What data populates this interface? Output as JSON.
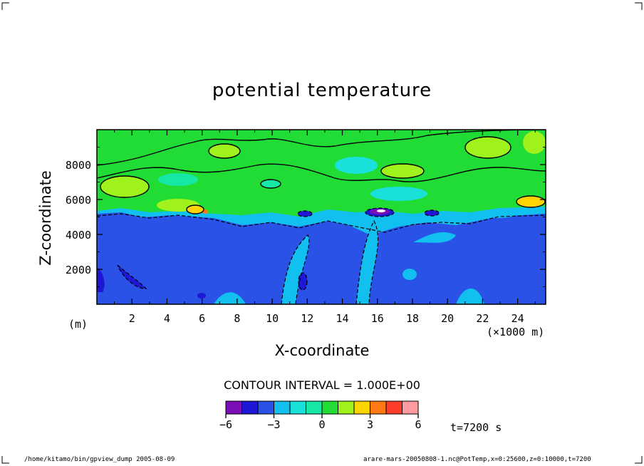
{
  "chart_data": {
    "type": "heatmap",
    "title": "potential temperature",
    "xlabel": "X-coordinate",
    "ylabel": "Z-coordinate",
    "x_unit": "(×1000 m)",
    "y_unit": "(m)",
    "xlim": [
      0,
      25.6
    ],
    "ylim": [
      0,
      10000
    ],
    "x_ticks": [
      2,
      4,
      6,
      8,
      10,
      12,
      14,
      16,
      18,
      20,
      22,
      24
    ],
    "y_ticks": [
      2000,
      4000,
      6000,
      8000
    ],
    "contour_interval_text": "CONTOUR INTERVAL = 1.000E+00",
    "colorbar": {
      "levels": [
        -6,
        -5,
        -4,
        -3,
        -2,
        -1,
        0,
        1,
        2,
        3,
        4,
        5,
        6
      ],
      "tick_labels": [
        "−6",
        "−3",
        "0",
        "3",
        "6"
      ],
      "tick_values": [
        -6,
        -3,
        0,
        3,
        6
      ],
      "colors": [
        "#7b0fb5",
        "#1e17d6",
        "#2b52e6",
        "#12c0f0",
        "#19e0d8",
        "#17e7a4",
        "#21dc34",
        "#9ff21b",
        "#ffd400",
        "#ff7a14",
        "#ff3c28",
        "#ff9aa0"
      ]
    },
    "time_label": "t=7200 s",
    "footer_left": "/home/kitamo/bin/gpview_dump   2005-08-09",
    "footer_right": "arare-mars-20050808-1.nc@PotTemp,x=0:25600,z=0:10000,t=7200"
  }
}
